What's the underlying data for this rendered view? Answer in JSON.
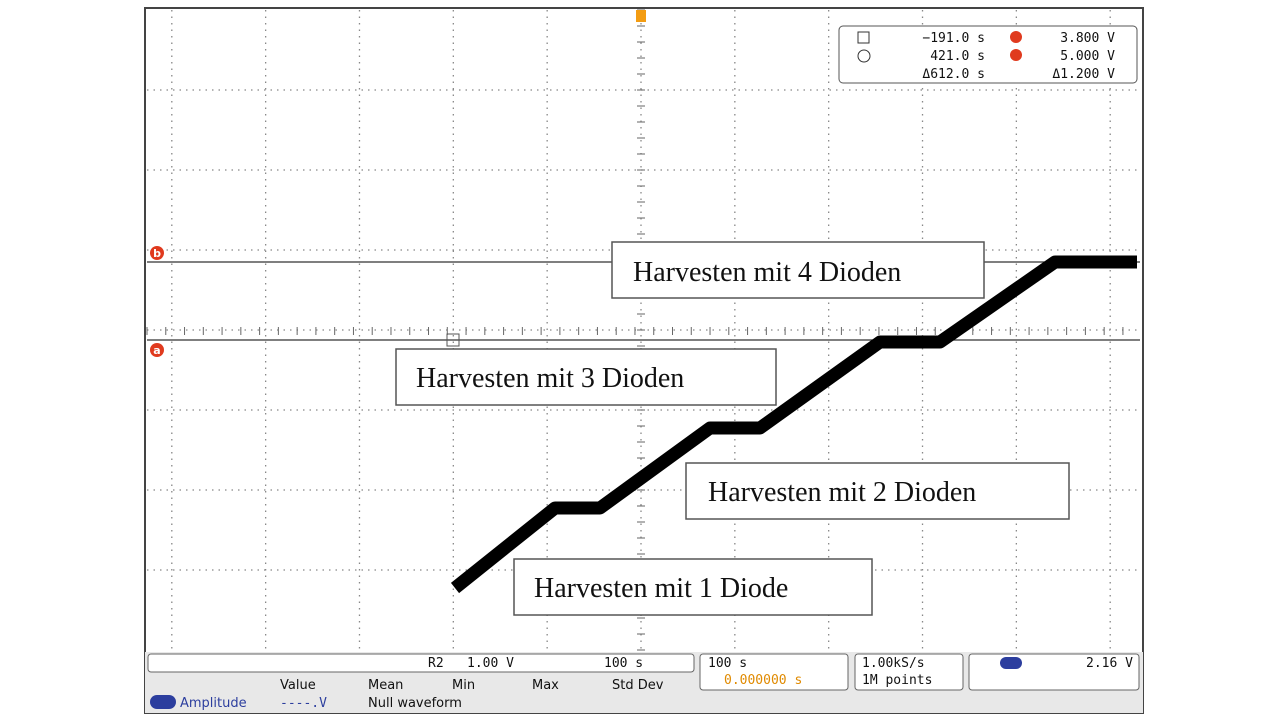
{
  "markers": {
    "a": "a",
    "b": "b"
  },
  "annotations": [
    "Harvesten mit 4 Dioden",
    "Harvesten mit 3 Dioden",
    "Harvesten mit 2 Dioden",
    "Harvesten mit 1 Diode"
  ],
  "cursor_readout": {
    "t1": "−191.0 s",
    "t2": "421.0 s",
    "dt": "Δ612.0 s",
    "v1": "3.800 V",
    "v2": "5.000 V",
    "dv": "Δ1.200 V"
  },
  "status": {
    "ref": "R2",
    "volts_div": "1.00 V",
    "time_div": "100 s",
    "horizontal_scale": "100 s",
    "delay": "0.000000 s",
    "sample_rate": "1.00kS/s",
    "record_length": "1M points",
    "trigger_level": "2.16 V"
  },
  "measurements": {
    "headers": [
      "Value",
      "Mean",
      "Min",
      "Max",
      "Std Dev"
    ],
    "name": "Amplitude",
    "value": "----.V",
    "note": "Null waveform"
  }
}
